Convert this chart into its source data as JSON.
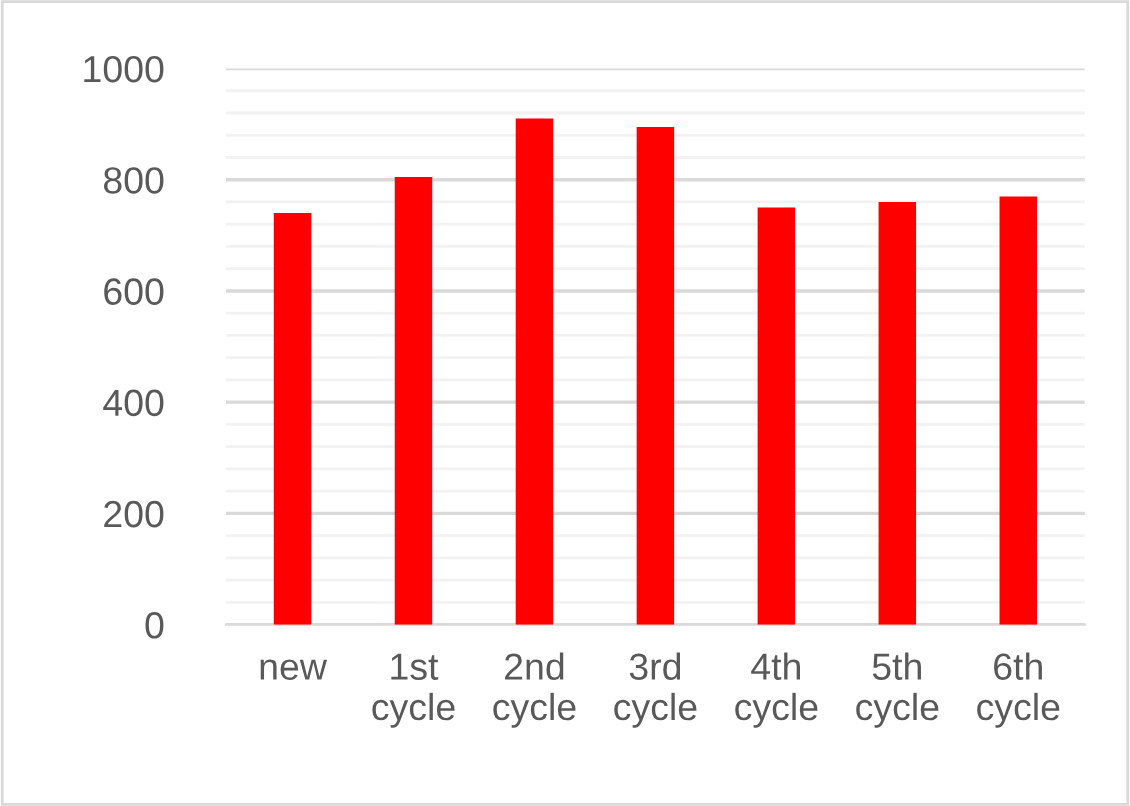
{
  "chart_data": {
    "type": "bar",
    "categories": [
      "new",
      "1st\ncycle",
      "2nd\ncycle",
      "3rd\ncycle",
      "4th\ncycle",
      "5th\ncycle",
      "6th\ncycle"
    ],
    "values": [
      740,
      805,
      910,
      895,
      750,
      760,
      770
    ],
    "color": "#ff0000",
    "ylim": [
      0,
      1000
    ],
    "yticks": [
      0,
      200,
      400,
      600,
      800,
      1000
    ],
    "grid": "y",
    "legend": false
  }
}
